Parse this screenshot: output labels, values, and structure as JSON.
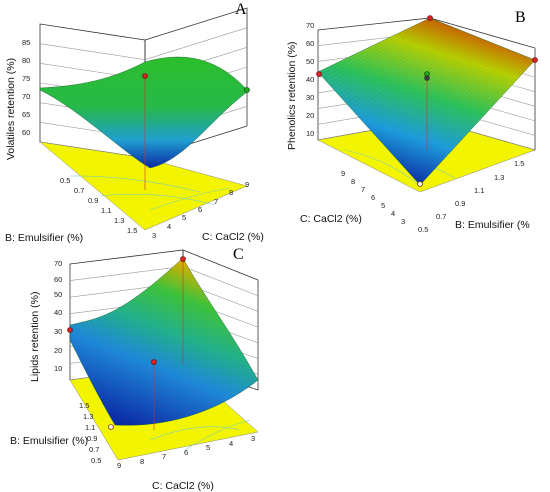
{
  "chart_data": [
    {
      "type": "surface",
      "panel": "A",
      "zlabel": "Volatiles retention (%)",
      "xlabel": "C: CaCl2 (%)",
      "ylabel": "B: Emulsifier (%)",
      "z_ticks": [
        "60",
        "65",
        "70",
        "75",
        "80",
        "85"
      ],
      "x_ticks": [
        "3",
        "4",
        "5",
        "6",
        "7",
        "8",
        "9"
      ],
      "y_ticks": [
        "0.5",
        "0.7",
        "0.9",
        "1.1",
        "1.3",
        "1.5"
      ],
      "zlim": [
        60,
        85
      ],
      "grid": true,
      "colormap": [
        "#0a2ea8",
        "#1fa0e8",
        "#2bc060",
        "#d8d800",
        "#e02000"
      ],
      "floor_color": "#f2f500",
      "surface_points": [
        {
          "x": 3,
          "y": 0.5,
          "z": 71
        },
        {
          "x": 9,
          "y": 0.5,
          "z": 71
        },
        {
          "x": 3,
          "y": 1.5,
          "z": 59
        },
        {
          "x": 9,
          "y": 1.5,
          "z": 71
        },
        {
          "x": 6,
          "y": 1.0,
          "z": 76
        }
      ],
      "design_points": [
        {
          "x": 6,
          "y": 1.0,
          "z": 77
        },
        {
          "x": 9,
          "y": 1.5,
          "z": 71
        }
      ]
    },
    {
      "type": "surface",
      "panel": "B",
      "zlabel": "Phenolics retention (%)",
      "xlabel": "B: Emulsifier (%",
      "ylabel": "C: CaCl2 (%)",
      "z_ticks": [
        "10",
        "20",
        "30",
        "40",
        "50",
        "60",
        "70"
      ],
      "x_ticks": [
        "0.5",
        "0.7",
        "0.9",
        "1.1",
        "1.3",
        "1.5"
      ],
      "y_ticks": [
        "3",
        "4",
        "5",
        "6",
        "7",
        "8",
        "9"
      ],
      "zlim": [
        10,
        70
      ],
      "grid": true,
      "colormap": [
        "#0a2ea8",
        "#1fa0e8",
        "#2bc060",
        "#d8d800",
        "#e02000"
      ],
      "floor_color": "#f2f500",
      "surface_points": [
        {
          "x": 0.5,
          "y": 9,
          "z": 47
        },
        {
          "x": 1.5,
          "y": 9,
          "z": 70
        },
        {
          "x": 0.5,
          "y": 3,
          "z": 5
        },
        {
          "x": 1.5,
          "y": 3,
          "z": 58
        }
      ],
      "design_points": [
        {
          "x": 1.0,
          "y": 6,
          "z": 40
        },
        {
          "x": 1.5,
          "y": 3,
          "z": 58
        },
        {
          "x": 0.5,
          "y": 9,
          "z": 47
        },
        {
          "x": 1.5,
          "y": 9,
          "z": 70
        }
      ]
    },
    {
      "type": "surface",
      "panel": "C",
      "zlabel": "Lipids retention (%)",
      "xlabel": "C: CaCl2 (%)",
      "ylabel": "B: Emulsifier (%)",
      "z_ticks": [
        "10",
        "20",
        "30",
        "40",
        "50",
        "60",
        "70"
      ],
      "x_ticks": [
        "9",
        "8",
        "7",
        "6",
        "5",
        "4",
        "3"
      ],
      "y_ticks": [
        "0.5",
        "0.7",
        "0.9",
        "1.1",
        "1.3",
        "1.5"
      ],
      "zlim": [
        10,
        70
      ],
      "grid": true,
      "colormap": [
        "#0a2ea8",
        "#1fa0e8",
        "#2bc060",
        "#d8d800",
        "#e02000"
      ],
      "floor_color": "#f2f500",
      "surface_points": [
        {
          "x": 9,
          "y": 1.5,
          "z": 28
        },
        {
          "x": 3,
          "y": 1.5,
          "z": 67
        },
        {
          "x": 9,
          "y": 0.5,
          "z": 5
        },
        {
          "x": 3,
          "y": 0.5,
          "z": 22
        }
      ],
      "design_points": [
        {
          "x": 6,
          "y": 1.0,
          "z": 20
        },
        {
          "x": 3,
          "y": 1.5,
          "z": 67
        },
        {
          "x": 9,
          "y": 1.5,
          "z": 28
        }
      ]
    }
  ]
}
